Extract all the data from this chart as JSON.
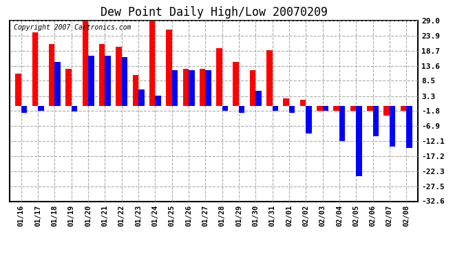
{
  "title": "Dew Point Daily High/Low 20070209",
  "copyright_text": "Copyright 2007 Cartronics.com",
  "dates": [
    "01/16",
    "01/17",
    "01/18",
    "01/19",
    "01/20",
    "01/21",
    "01/22",
    "01/23",
    "01/24",
    "01/25",
    "01/26",
    "01/27",
    "01/28",
    "01/29",
    "01/30",
    "01/31",
    "02/01",
    "02/02",
    "02/03",
    "02/04",
    "02/05",
    "02/06",
    "02/07",
    "02/08"
  ],
  "high": [
    11.0,
    25.0,
    21.0,
    12.5,
    29.0,
    21.0,
    20.0,
    10.5,
    29.0,
    26.0,
    12.5,
    12.5,
    19.5,
    15.0,
    12.0,
    19.0,
    2.5,
    2.0,
    -1.8,
    -1.8,
    -1.8,
    -1.8,
    -3.5,
    -1.8
  ],
  "low": [
    -2.5,
    -1.8,
    15.0,
    -2.0,
    17.0,
    17.0,
    16.5,
    5.5,
    3.5,
    12.0,
    12.0,
    12.0,
    -1.8,
    -2.5,
    5.0,
    -1.8,
    -2.5,
    -9.5,
    -1.8,
    -12.0,
    -24.0,
    -10.5,
    -14.0,
    -14.5
  ],
  "ylim": [
    -32.6,
    29.0
  ],
  "yticks": [
    29.0,
    23.9,
    18.7,
    13.6,
    8.5,
    3.3,
    -1.8,
    -6.9,
    -12.1,
    -17.2,
    -22.3,
    -27.5,
    -32.6
  ],
  "high_color": "#FF0000",
  "low_color": "#0000FF",
  "background_color": "#FFFFFF",
  "grid_color": "#AAAAAA",
  "title_fontsize": 12,
  "copyright_fontsize": 7,
  "bar_width": 0.35,
  "figwidth": 6.9,
  "figheight": 3.75,
  "dpi": 100
}
